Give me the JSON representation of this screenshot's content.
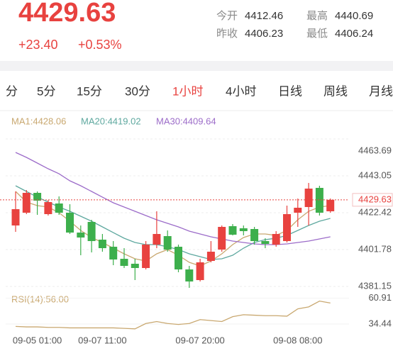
{
  "header": {
    "price": "4429.63",
    "change": "+23.40",
    "change_pct": "+0.53%",
    "stats": [
      {
        "label": "今开",
        "value": "4412.46"
      },
      {
        "label": "最高",
        "value": "4440.69"
      },
      {
        "label": "昨收",
        "value": "4406.23"
      },
      {
        "label": "最低",
        "value": "4406.24"
      }
    ]
  },
  "tabs": {
    "items": [
      "分",
      "5分",
      "15分",
      "30分",
      "1小时",
      "4小时",
      "日线",
      "周线",
      "月线"
    ],
    "active": 4
  },
  "chart_data": {
    "type": "candlestick",
    "categories": [
      null,
      null,
      "09-05 01:00",
      null,
      null,
      null,
      null,
      null,
      "09-07 11:00",
      null,
      null,
      null,
      null,
      null,
      null,
      null,
      null,
      "09-07 20:00",
      null,
      null,
      null,
      null,
      null,
      null,
      null,
      null,
      "09-08 08:00",
      null,
      null,
      null
    ],
    "open": [
      4415.27,
      4422.42,
      4433.54,
      4421.63,
      4427.58,
      4422.42,
      4411.3,
      4417.26,
      4407.33,
      4403.36,
      4396.61,
      4393.84,
      4391.45,
      4404.55,
      4409.32,
      4403.36,
      4390.66,
      4384.7,
      4395.42,
      4401.78,
      4414.88,
      4413.69,
      4413.29,
      4406.54,
      4404.55,
      4406.54,
      4422.42,
      4425.6,
      4436.32,
      4423.21
    ],
    "close": [
      4424.41,
      4433.54,
      4429.17,
      4428.38,
      4422.42,
      4411.3,
      4408.53,
      4406.54,
      4402.57,
      4396.22,
      4392.64,
      4391.45,
      4404.55,
      4410.51,
      4401.78,
      4390.66,
      4383.91,
      4394.63,
      4400.59,
      4414.48,
      4410.11,
      4412.1,
      4406.54,
      4404.95,
      4410.51,
      4421.63,
      4425.2,
      4435.92,
      4422.42,
      4429.63
    ],
    "high": [
      4434.33,
      4435.12,
      4434.33,
      4429.57,
      4431.55,
      4427.18,
      4415.27,
      4418.45,
      4410.51,
      4406.54,
      4402.57,
      4396.61,
      4406.54,
      4423.21,
      4412.49,
      4404.55,
      4392.64,
      4396.61,
      4406.54,
      4415.27,
      4416.07,
      4415.27,
      4414.48,
      4408.13,
      4412.1,
      4426.39,
      4430.36,
      4439.09,
      4437.51,
      4430.36
    ],
    "low": [
      4411.7,
      4421.63,
      4421.23,
      4420.83,
      4421.23,
      4410.51,
      4398.6,
      4400.19,
      4400.59,
      4393.04,
      4391.45,
      4384.7,
      4390.66,
      4402.57,
      4400.59,
      4389.07,
      4380.34,
      4383.91,
      4394.63,
      4400.59,
      4409.72,
      4409.72,
      4404.55,
      4402.57,
      4403.36,
      4405.75,
      4414.48,
      4415.27,
      4420.83,
      4422.42
    ],
    "up_color": "#e8423f",
    "down_color": "#3daf4c",
    "ylim": [
      4378.75,
      4464.11
    ],
    "yticks": [
      4463.69,
      4443.05,
      4422.42,
      4401.78,
      4381.15
    ],
    "grid": true,
    "last_price": 4429.63,
    "series": [
      {
        "name": "MA1:4428.06",
        "color": "#c9a870",
        "values": [
          4434.33,
          4428.37,
          4426.39,
          4425.6,
          4422.42,
          4417.66,
          4412.49,
          4408.52,
          4405.75,
          4402.57,
          4399.39,
          4396.61,
          4395.42,
          4399.39,
          4401.78,
          4398.6,
          4394.63,
          4392.64,
          4395.42,
          4399.39,
          4404.55,
          4408.52,
          4410.51,
          4410.51,
          4409.72,
          4412.49,
          4418.45,
          4423.21,
          4425.6,
          4426.39
        ]
      },
      {
        "name": "MA20:4419.02",
        "color": "#5ea89f",
        "values": [
          4437.51,
          4434.33,
          4431.15,
          4428.37,
          4425.6,
          4423.21,
          4420.43,
          4417.66,
          4414.48,
          4411.3,
          4408.13,
          4405.75,
          4404.55,
          4404.55,
          4403.36,
          4401.78,
          4399.39,
          4397.81,
          4396.22,
          4396.61,
          4398.6,
          4402.57,
          4405.75,
          4407.33,
          4408.13,
          4409.72,
          4412.49,
          4415.27,
          4417.66,
          4419.24
        ]
      },
      {
        "name": "MA30:4409.64",
        "color": "#9c6cc9",
        "values": [
          4456.16,
          4453.39,
          4450.21,
          4447.03,
          4444.25,
          4440.28,
          4437.51,
          4434.33,
          4431.15,
          4427.98,
          4425.6,
          4423.21,
          4420.83,
          4418.45,
          4416.46,
          4414.48,
          4412.1,
          4410.51,
          4408.92,
          4407.73,
          4406.54,
          4405.75,
          4404.95,
          4404.55,
          4404.55,
          4404.95,
          4405.75,
          4406.54,
          4407.73,
          4408.92
        ]
      }
    ],
    "rsi": {
      "label": "RSI(14):56.00",
      "color": "#c9a870",
      "values": [
        32,
        31.5,
        31.5,
        31,
        31,
        30.5,
        30.5,
        30.5,
        30.5,
        30.5,
        30,
        29.5,
        35,
        37,
        35,
        34,
        35,
        39,
        38,
        37,
        42,
        44,
        43.5,
        43,
        43,
        42.5,
        50,
        52,
        58,
        56
      ],
      "ylim": [
        25,
        65
      ],
      "yticks": [
        60.91,
        34.44
      ]
    }
  }
}
